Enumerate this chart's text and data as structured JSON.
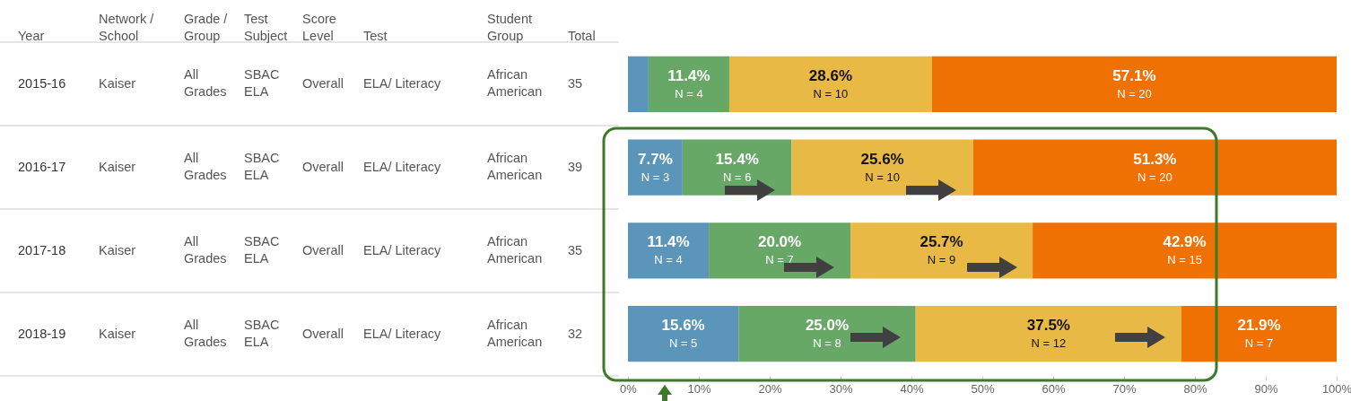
{
  "chart_data": [
    {
      "type": "other",
      "annotations": [
        "Year",
        "Network /\nSchool",
        "Grade /\nGroup",
        "Test\nSubject",
        "Score\nLevel",
        "Test",
        "Student\nGroup",
        "Total",
        "2015-16",
        "Kaiser",
        "All\nGrades",
        "SBAC\nELA",
        "Overall",
        "ELA/ Literacy",
        "African\nAmerican",
        "35",
        "2016-17",
        "Kaiser",
        "All\nGrades",
        "SBAC\nELA",
        "Overall",
        "ELA/ Literacy",
        "African\nAmerican",
        "39",
        "2017-18",
        "Kaiser",
        "All\nGrades",
        "SBAC\nELA",
        "Overall",
        "ELA/ Literacy",
        "African\nAmerican",
        "35",
        "2018-19",
        "Kaiser",
        "All\nGrades",
        "SBAC\nELA",
        "Overall",
        "ELA/ Literacy",
        "African\nAmerican",
        "32"
      ]
    },
    {
      "type": "bar",
      "orientation": "horizontal",
      "stacked": true,
      "tick_labels": "x",
      "categories": [
        null,
        null,
        null,
        null
      ],
      "xlim": [
        0,
        100
      ],
      "xticks": [
        {
          "value": 0,
          "label": "0%"
        },
        {
          "value": 10,
          "label": "10%"
        },
        {
          "value": 20,
          "label": "20%"
        },
        {
          "value": 30,
          "label": "30%"
        },
        {
          "value": 40,
          "label": "40%"
        },
        {
          "value": 50,
          "label": "50%"
        },
        {
          "value": 60,
          "label": "60%"
        },
        {
          "value": 70,
          "label": "70%"
        },
        {
          "value": 80,
          "label": "80%"
        },
        {
          "value": 90,
          "label": "90%"
        },
        {
          "value": 100,
          "label": "100%"
        }
      ],
      "series": [
        {
          "color": "#5b95ba",
          "values": [
            2.9,
            7.7,
            11.4,
            15.6
          ],
          "value_labels": [
            null,
            "7.7%\nN = 3",
            "11.4%\nN = 4",
            "15.6%\nN = 5"
          ]
        },
        {
          "color": "#68a867",
          "values": [
            11.4,
            15.4,
            20.0,
            25.0
          ],
          "value_labels": [
            "11.4%\nN = 4",
            "15.4%\nN = 6",
            "20.0%\nN = 7",
            "25.0%\nN = 8"
          ]
        },
        {
          "color": "#e8b945",
          "values": [
            28.6,
            25.6,
            25.7,
            37.5
          ],
          "value_labels": [
            "28.6%\nN = 10",
            "25.6%\nN = 10",
            "25.7%\nN = 9",
            "37.5%\nN = 12"
          ]
        },
        {
          "color": "#ef7003",
          "values": [
            57.1,
            51.3,
            42.9,
            21.9
          ],
          "value_labels": [
            "57.1%\nN = 20",
            "51.3%\nN = 20",
            "42.9%\nN = 15",
            "21.9%\nN = 7"
          ]
        }
      ]
    }
  ]
}
